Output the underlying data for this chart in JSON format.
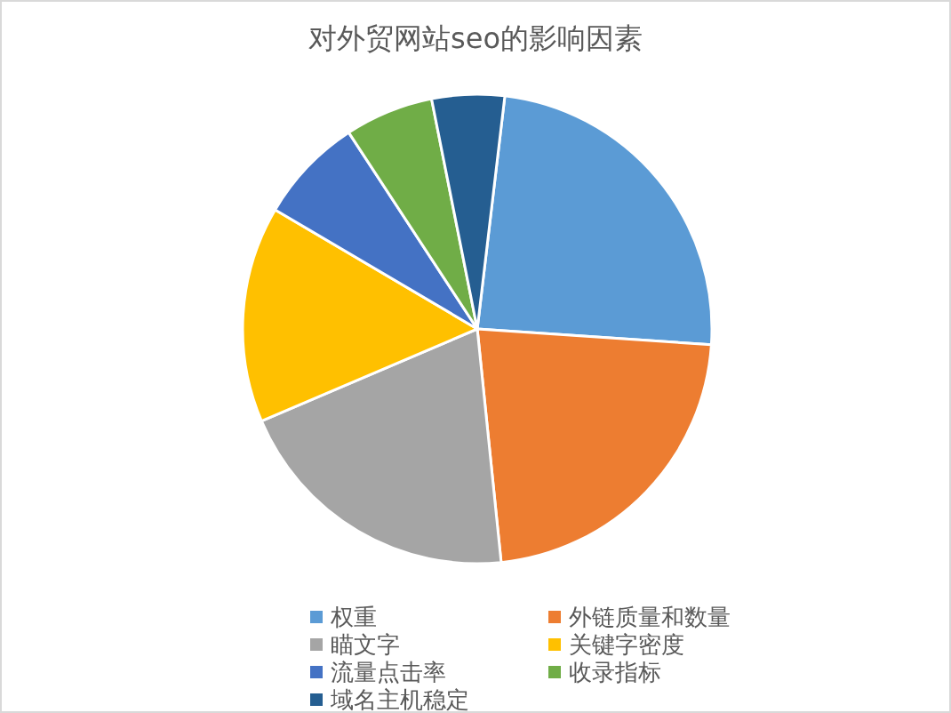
{
  "chart_data": {
    "type": "pie",
    "title": "对外贸网站seo的影响因素",
    "categories": [
      "权重",
      "外链质量和数量",
      "瞄文字",
      "关键字密度",
      "流量点击率",
      "收录指标",
      "域名主机稳定"
    ],
    "values": [
      24.2,
      22.3,
      20.2,
      14.9,
      7.3,
      6.1,
      5.0
    ],
    "colors": [
      "#5b9bd5",
      "#ed7d31",
      "#a5a5a5",
      "#ffc000",
      "#4472c4",
      "#70ad47",
      "#255e91"
    ],
    "legend": "bottom"
  }
}
